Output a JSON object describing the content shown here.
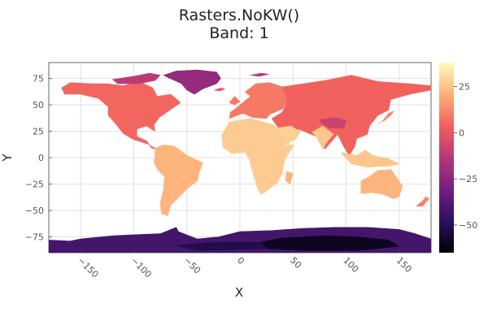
{
  "chart_data": {
    "type": "heatmap",
    "title": "Rasters.NoKW()",
    "subtitle": "Band: 1",
    "xlabel": "X",
    "ylabel": "Y",
    "xlim": [
      -180,
      180
    ],
    "ylim": [
      -90,
      90
    ],
    "xticks": [
      -150,
      -100,
      -50,
      0,
      50,
      100,
      150
    ],
    "yticks": [
      -75,
      -50,
      -25,
      0,
      25,
      50,
      75
    ],
    "grid": true,
    "colormap": "magma",
    "colorbar": {
      "min": -65,
      "max": 38,
      "ticks": [
        25,
        0,
        -25,
        -50
      ]
    },
    "colormap_stops": [
      "#000004",
      "#2c115f",
      "#721f81",
      "#b73779",
      "#f1605d",
      "#feaf78",
      "#fcfdbf"
    ],
    "land_regions": [
      {
        "name": "North America",
        "value": 5,
        "poly": [
          [
            -168,
            66
          ],
          [
            -160,
            71
          ],
          [
            -140,
            70
          ],
          [
            -125,
            70
          ],
          [
            -110,
            68
          ],
          [
            -95,
            72
          ],
          [
            -82,
            66
          ],
          [
            -78,
            58
          ],
          [
            -65,
            60
          ],
          [
            -56,
            52
          ],
          [
            -66,
            45
          ],
          [
            -76,
            38
          ],
          [
            -81,
            31
          ],
          [
            -80,
            25
          ],
          [
            -88,
            30
          ],
          [
            -97,
            27
          ],
          [
            -97,
            20
          ],
          [
            -88,
            16
          ],
          [
            -83,
            9
          ],
          [
            -78,
            8
          ],
          [
            -87,
            13
          ],
          [
            -100,
            17
          ],
          [
            -110,
            23
          ],
          [
            -117,
            32
          ],
          [
            -124,
            40
          ],
          [
            -124,
            48
          ],
          [
            -133,
            56
          ],
          [
            -150,
            60
          ],
          [
            -165,
            60
          ]
        ]
      },
      {
        "name": "Canadian Arctic",
        "value": -12,
        "poly": [
          [
            -120,
            74
          ],
          [
            -100,
            77
          ],
          [
            -85,
            80
          ],
          [
            -75,
            78
          ],
          [
            -80,
            73
          ],
          [
            -95,
            70
          ],
          [
            -115,
            70
          ]
        ]
      },
      {
        "name": "Greenland",
        "value": -22,
        "poly": [
          [
            -72,
            78
          ],
          [
            -60,
            82
          ],
          [
            -40,
            83
          ],
          [
            -22,
            81
          ],
          [
            -18,
            75
          ],
          [
            -22,
            70
          ],
          [
            -35,
            65
          ],
          [
            -43,
            60
          ],
          [
            -50,
            64
          ],
          [
            -55,
            70
          ],
          [
            -68,
            76
          ]
        ]
      },
      {
        "name": "South America",
        "value": 22,
        "poly": [
          [
            -80,
            9
          ],
          [
            -72,
            12
          ],
          [
            -62,
            11
          ],
          [
            -50,
            2
          ],
          [
            -35,
            -5
          ],
          [
            -38,
            -13
          ],
          [
            -40,
            -22
          ],
          [
            -48,
            -28
          ],
          [
            -58,
            -38
          ],
          [
            -65,
            -45
          ],
          [
            -68,
            -55
          ],
          [
            -74,
            -53
          ],
          [
            -75,
            -43
          ],
          [
            -72,
            -30
          ],
          [
            -71,
            -18
          ],
          [
            -77,
            -12
          ],
          [
            -81,
            -5
          ],
          [
            -80,
            2
          ]
        ]
      },
      {
        "name": "Africa",
        "value": 27,
        "poly": [
          [
            -17,
            21
          ],
          [
            -10,
            34
          ],
          [
            10,
            37
          ],
          [
            32,
            31
          ],
          [
            35,
            28
          ],
          [
            43,
            12
          ],
          [
            51,
            12
          ],
          [
            42,
            -2
          ],
          [
            40,
            -15
          ],
          [
            35,
            -24
          ],
          [
            20,
            -35
          ],
          [
            17,
            -30
          ],
          [
            12,
            -14
          ],
          [
            9,
            -2
          ],
          [
            5,
            5
          ],
          [
            -8,
            4
          ],
          [
            -16,
            10
          ]
        ]
      },
      {
        "name": "Madagascar",
        "value": 22,
        "poly": [
          [
            44,
            -13
          ],
          [
            50,
            -15
          ],
          [
            47,
            -25
          ],
          [
            43,
            -22
          ]
        ]
      },
      {
        "name": "Europe",
        "value": 9,
        "poly": [
          [
            -10,
            37
          ],
          [
            -9,
            43
          ],
          [
            -2,
            48
          ],
          [
            5,
            54
          ],
          [
            10,
            58
          ],
          [
            5,
            62
          ],
          [
            15,
            70
          ],
          [
            28,
            71
          ],
          [
            40,
            67
          ],
          [
            45,
            55
          ],
          [
            40,
            46
          ],
          [
            28,
            41
          ],
          [
            25,
            37
          ],
          [
            12,
            38
          ],
          [
            3,
            42
          ]
        ]
      },
      {
        "name": "Asia",
        "value": 4,
        "poly": [
          [
            40,
            67
          ],
          [
            60,
            70
          ],
          [
            80,
            73
          ],
          [
            105,
            78
          ],
          [
            130,
            72
          ],
          [
            160,
            70
          ],
          [
            180,
            68
          ],
          [
            180,
            64
          ],
          [
            160,
            60
          ],
          [
            142,
            55
          ],
          [
            140,
            45
          ],
          [
            130,
            40
          ],
          [
            122,
            30
          ],
          [
            120,
            22
          ],
          [
            110,
            18
          ],
          [
            108,
            10
          ],
          [
            103,
            2
          ],
          [
            98,
            10
          ],
          [
            92,
            22
          ],
          [
            80,
            8
          ],
          [
            72,
            20
          ],
          [
            60,
            25
          ],
          [
            55,
            27
          ],
          [
            45,
            13
          ],
          [
            35,
            30
          ],
          [
            30,
            37
          ],
          [
            40,
            43
          ],
          [
            45,
            55
          ]
        ]
      },
      {
        "name": "Tibetan Plateau",
        "value": -8,
        "poly": [
          [
            75,
            36
          ],
          [
            90,
            38
          ],
          [
            100,
            35
          ],
          [
            98,
            28
          ],
          [
            85,
            28
          ],
          [
            77,
            32
          ]
        ]
      },
      {
        "name": "Arabia",
        "value": 28,
        "poly": [
          [
            35,
            28
          ],
          [
            48,
            30
          ],
          [
            57,
            24
          ],
          [
            52,
            17
          ],
          [
            43,
            13
          ]
        ]
      },
      {
        "name": "India",
        "value": 26,
        "poly": [
          [
            68,
            24
          ],
          [
            72,
            20
          ],
          [
            78,
            8
          ],
          [
            82,
            15
          ],
          [
            88,
            22
          ],
          [
            78,
            30
          ]
        ]
      },
      {
        "name": "Southeast Asia Islands",
        "value": 26,
        "poly": [
          [
            95,
            5
          ],
          [
            105,
            -6
          ],
          [
            120,
            -9
          ],
          [
            140,
            -8
          ],
          [
            150,
            -6
          ],
          [
            140,
            -1
          ],
          [
            125,
            2
          ],
          [
            118,
            7
          ],
          [
            110,
            2
          ]
        ]
      },
      {
        "name": "Japan",
        "value": 12,
        "poly": [
          [
            130,
            32
          ],
          [
            136,
            35
          ],
          [
            142,
            40
          ],
          [
            145,
            44
          ],
          [
            140,
            42
          ],
          [
            134,
            34
          ]
        ]
      },
      {
        "name": "Australia",
        "value": 22,
        "poly": [
          [
            114,
            -22
          ],
          [
            114,
            -34
          ],
          [
            125,
            -33
          ],
          [
            135,
            -35
          ],
          [
            145,
            -39
          ],
          [
            150,
            -37
          ],
          [
            153,
            -27
          ],
          [
            145,
            -15
          ],
          [
            142,
            -11
          ],
          [
            136,
            -12
          ],
          [
            130,
            -12
          ],
          [
            122,
            -18
          ]
        ]
      },
      {
        "name": "New Zealand",
        "value": 11,
        "poly": [
          [
            166,
            -46
          ],
          [
            172,
            -41
          ],
          [
            175,
            -37
          ],
          [
            178,
            -39
          ],
          [
            172,
            -46
          ]
        ]
      },
      {
        "name": "Iceland",
        "value": 2,
        "poly": [
          [
            -24,
            64
          ],
          [
            -18,
            66
          ],
          [
            -14,
            65
          ],
          [
            -19,
            63
          ]
        ]
      },
      {
        "name": "British Isles",
        "value": 9,
        "poly": [
          [
            -10,
            52
          ],
          [
            -5,
            58
          ],
          [
            0,
            53
          ],
          [
            -5,
            50
          ]
        ]
      },
      {
        "name": "Svalbard",
        "value": -12,
        "poly": [
          [
            10,
            78
          ],
          [
            20,
            80
          ],
          [
            27,
            79
          ],
          [
            18,
            77
          ]
        ]
      },
      {
        "name": "Antarctica",
        "value": -42,
        "poly": [
          [
            -180,
            -78
          ],
          [
            -160,
            -79
          ],
          [
            -150,
            -77
          ],
          [
            -120,
            -74
          ],
          [
            -100,
            -73
          ],
          [
            -75,
            -72
          ],
          [
            -60,
            -66
          ],
          [
            -58,
            -70
          ],
          [
            -40,
            -77
          ],
          [
            -20,
            -75
          ],
          [
            0,
            -70
          ],
          [
            30,
            -69
          ],
          [
            60,
            -67
          ],
          [
            90,
            -66
          ],
          [
            120,
            -66
          ],
          [
            150,
            -68
          ],
          [
            165,
            -72
          ],
          [
            180,
            -77
          ],
          [
            180,
            -90
          ],
          [
            -180,
            -90
          ]
        ]
      },
      {
        "name": "East Antarctic Plateau",
        "value": -60,
        "poly": [
          [
            20,
            -80
          ],
          [
            40,
            -76
          ],
          [
            80,
            -74
          ],
          [
            110,
            -75
          ],
          [
            140,
            -78
          ],
          [
            150,
            -84
          ],
          [
            110,
            -88
          ],
          [
            60,
            -88
          ],
          [
            25,
            -86
          ]
        ]
      },
      {
        "name": "Central Antarctic interior",
        "value": -52,
        "poly": [
          [
            -60,
            -83
          ],
          [
            -20,
            -80
          ],
          [
            20,
            -80
          ],
          [
            25,
            -86
          ],
          [
            -40,
            -88
          ]
        ]
      }
    ]
  }
}
